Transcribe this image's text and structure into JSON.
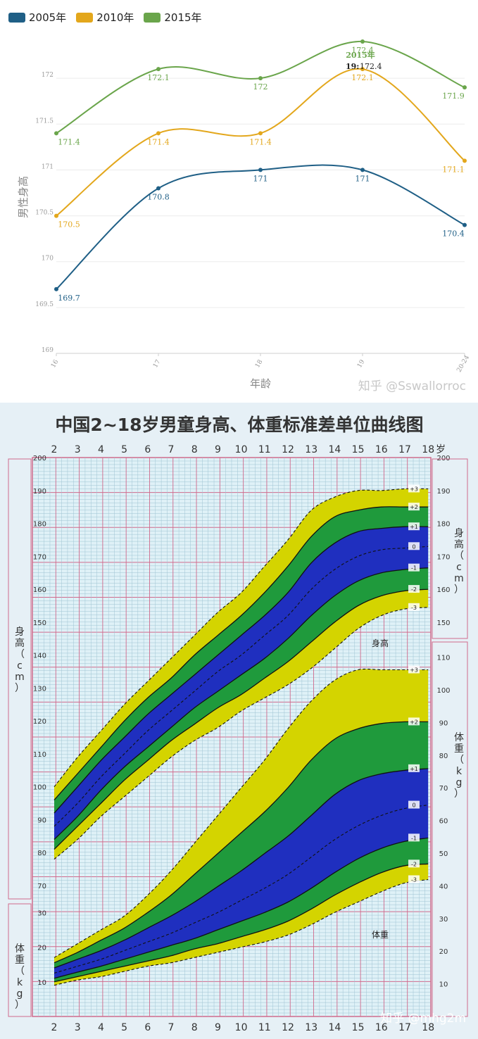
{
  "top": {
    "chart_data": {
      "type": "line",
      "ylabel": "男性身高",
      "xlabel": "年龄",
      "categories": [
        "16",
        "17",
        "18",
        "19",
        "20-24"
      ],
      "ylim": [
        169,
        172.5
      ],
      "yticks": [
        "169",
        "169.5",
        "170",
        "170.5",
        "171",
        "171.5",
        "172"
      ],
      "grid": true,
      "legend_position": "top-left",
      "series": [
        {
          "name": "2005年",
          "color": "#1f5f86",
          "values": [
            169.7,
            170.8,
            171,
            171,
            170.4
          ],
          "labels": [
            "169.7",
            "170.8",
            "171",
            "171",
            "170.4"
          ]
        },
        {
          "name": "2010年",
          "color": "#e3a71c",
          "values": [
            170.5,
            171.4,
            171.4,
            172.1,
            171.1
          ],
          "labels": [
            "170.5",
            "171.4",
            "171.4",
            "172.1",
            "171.1"
          ]
        },
        {
          "name": "2015年",
          "color": "#6aa54b",
          "values": [
            171.4,
            172.1,
            172,
            172.4,
            171.9
          ],
          "labels": [
            "171.4",
            "172.1",
            "172",
            "172.4",
            "171.9"
          ]
        }
      ],
      "tooltip": {
        "title": "2015年",
        "key": "19:",
        "value": "172.4"
      }
    },
    "watermark": "知乎 @Sswallorroc"
  },
  "growth": {
    "chart_data": {
      "type": "area",
      "title": "中国2~18岁男童身高、体重标准差单位曲线图",
      "x": [
        2,
        3,
        4,
        5,
        6,
        7,
        8,
        9,
        10,
        11,
        12,
        13,
        14,
        15,
        16,
        17,
        18
      ],
      "x_unit": "岁",
      "height": {
        "label": "身高",
        "axis_label_left": "身高（cm）",
        "axis_label_right": "身高（cm）",
        "left_range": [
          70,
          200
        ],
        "right_range": [
          150,
          200
        ],
        "sd_labels": [
          "+3",
          "+2",
          "+1",
          "0",
          "-1",
          "-2",
          "-3"
        ],
        "curves": {
          "+3": [
            100,
            109,
            117,
            125,
            132,
            139,
            146,
            153,
            159,
            167,
            175,
            184,
            188,
            190,
            190,
            190.5,
            190.5
          ],
          "+2": [
            96,
            104,
            112,
            120,
            127,
            133,
            140,
            146,
            152,
            159,
            167,
            176,
            182,
            184,
            185,
            185,
            185
          ],
          "+1": [
            92,
            100,
            108,
            115,
            122,
            128,
            134,
            140,
            146,
            152,
            159,
            168,
            174,
            177.5,
            178.5,
            179,
            179
          ],
          "0": [
            88,
            95,
            103,
            110,
            117,
            123,
            129,
            135,
            140,
            146,
            152,
            160,
            166,
            170,
            172,
            172.5,
            173
          ],
          "-1": [
            84,
            91,
            99,
            106,
            112,
            118,
            124,
            129,
            134,
            139,
            145,
            152,
            158,
            162.5,
            165,
            166,
            166.5
          ],
          "-2": [
            81,
            88,
            95,
            102,
            108,
            114,
            119,
            124,
            128,
            133,
            138,
            144,
            150,
            155,
            158,
            159.5,
            160
          ],
          "-3": [
            78,
            84,
            91,
            97,
            103,
            109,
            114,
            118,
            123,
            127,
            131,
            136,
            142,
            148,
            152,
            154,
            154.5
          ]
        }
      },
      "weight": {
        "label": "体重",
        "axis_label_left": "体重（kg）",
        "axis_label_right": "体重（kg）",
        "left_range": [
          0,
          40
        ],
        "right_range": [
          0,
          110
        ],
        "sd_labels": [
          "+3",
          "+2",
          "+1",
          "0",
          "-1",
          "-2",
          "-3"
        ],
        "curves": {
          "+3": [
            17,
            21,
            25,
            29,
            35,
            42,
            50,
            58,
            66,
            74,
            83,
            91,
            97,
            100,
            100,
            100,
            100
          ],
          "+2": [
            15.5,
            18.5,
            22,
            25.5,
            30,
            35,
            41,
            47,
            53,
            59,
            66,
            74,
            80,
            83,
            84.5,
            85,
            85
          ],
          "+1": [
            14,
            16.5,
            19,
            22,
            25.5,
            29,
            33,
            37.5,
            42,
            47,
            52,
            58,
            64,
            68,
            70,
            71,
            71.5
          ],
          "0": [
            12.5,
            14.5,
            16.5,
            19,
            21.5,
            24,
            27,
            30,
            33.5,
            37,
            41,
            46,
            51,
            55,
            58,
            60,
            61
          ],
          "-1": [
            11,
            12.8,
            14.5,
            16.5,
            18.5,
            20.5,
            22.5,
            25,
            27.5,
            30,
            33,
            37,
            41.5,
            45.5,
            48.5,
            50.5,
            51.5
          ],
          "-2": [
            10,
            11.5,
            13,
            14.5,
            16,
            17.5,
            19.5,
            21,
            23,
            25,
            27.5,
            31,
            35,
            38.5,
            41.5,
            43.5,
            44
          ],
          "-3": [
            9,
            10.5,
            11.5,
            13,
            14.5,
            15.5,
            17,
            18.5,
            20,
            21.5,
            23.5,
            26.5,
            30,
            33,
            36,
            38.5,
            39.5
          ]
        }
      }
    },
    "watermark": "知乎 @mhg2m"
  }
}
